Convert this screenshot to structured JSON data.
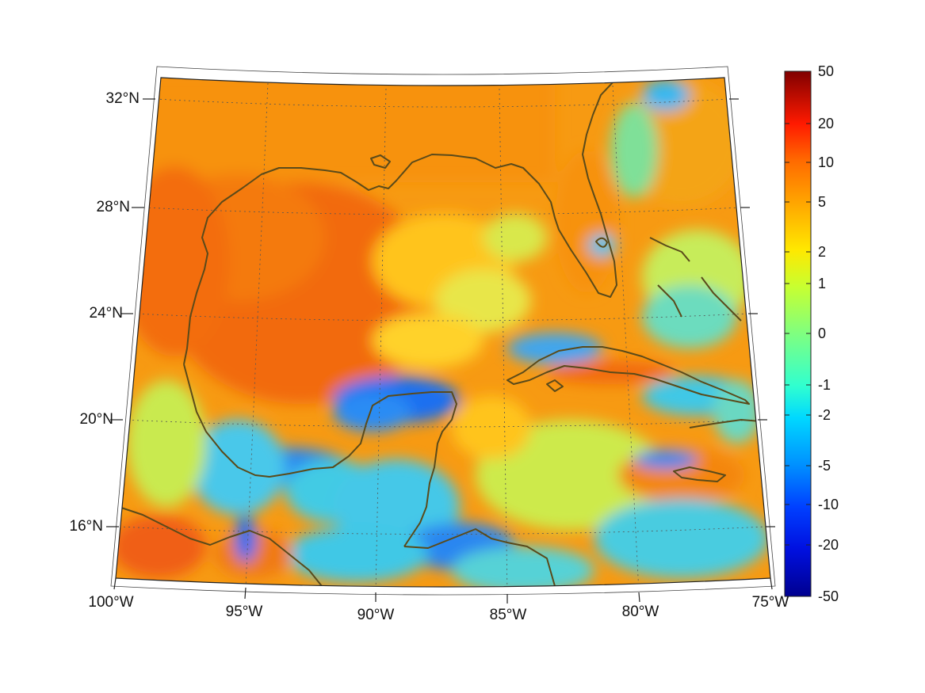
{
  "map": {
    "projection": "conic",
    "lon_range": [
      -100,
      -75
    ],
    "lat_range": [
      14,
      33
    ],
    "lon_labels": [
      "100°W",
      "95°W",
      "90°W",
      "85°W",
      "80°W",
      "75°W"
    ],
    "lat_labels": [
      "32°N",
      "28°N",
      "24°N",
      "20°N",
      "16°N"
    ],
    "coastline_color": "#5a4a1a",
    "grid_style": "dotted"
  },
  "colorbar": {
    "tick_labels": [
      "50",
      "20",
      "10",
      "5",
      "2",
      "1",
      "0",
      "-1",
      "-2",
      "-5",
      "-10",
      "-20",
      "-50"
    ],
    "colormap": "jet",
    "scale": "symmetric-log"
  },
  "field_features": [
    {
      "area": "western Gulf of Mexico",
      "level": "high (~5)",
      "color": "#f26a10"
    },
    {
      "area": "Bay of Campeche / Yucatan coast",
      "level": "negative (~-5)",
      "color": "#1f6ff0"
    },
    {
      "area": "Caribbean south of Cuba",
      "level": "near 0 to -2",
      "color": "#39d6e0"
    }
  ]
}
